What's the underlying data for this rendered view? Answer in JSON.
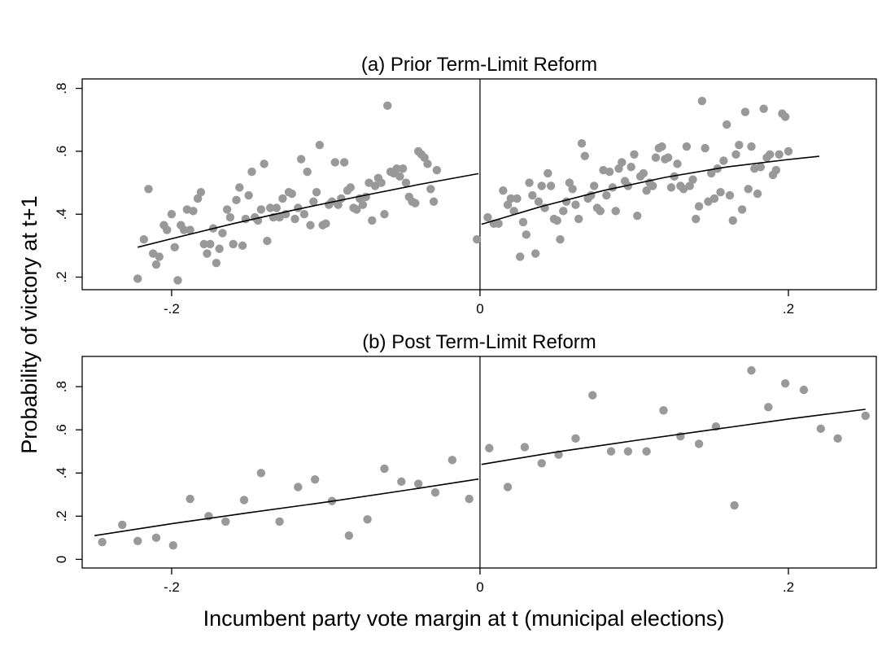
{
  "chart_data": {
    "type": "scatter",
    "ylabel": "Probability of victory at t+1",
    "xlabel": "Incumbent party vote margin at t (municipal elections)",
    "colors": {
      "points": "#999999",
      "fit": "#000000"
    },
    "legend": "none",
    "grid": false,
    "panels": [
      {
        "title": "(a) Prior Term-Limit Reform",
        "xlim": [
          -0.258,
          0.257
        ],
        "ylim": [
          0.16,
          0.83
        ],
        "xticks": [
          -0.2,
          0,
          0.2
        ],
        "xtick_labels": [
          "-.2",
          "0",
          ".2"
        ],
        "yticks": [
          0.2,
          0.4,
          0.6,
          0.8
        ],
        "ytick_labels": [
          ".2",
          ".4",
          ".6",
          ".8"
        ],
        "cutoff": 0,
        "fit_left": [
          [
            -0.222,
            0.295
          ],
          [
            -0.2,
            0.322
          ],
          [
            -0.16,
            0.37
          ],
          [
            -0.12,
            0.414
          ],
          [
            -0.08,
            0.455
          ],
          [
            -0.04,
            0.494
          ],
          [
            -0.001,
            0.529
          ]
        ],
        "fit_right": [
          [
            0.001,
            0.368
          ],
          [
            0.04,
            0.425
          ],
          [
            0.08,
            0.475
          ],
          [
            0.12,
            0.517
          ],
          [
            0.16,
            0.55
          ],
          [
            0.2,
            0.574
          ],
          [
            0.22,
            0.584
          ]
        ],
        "points": [
          [
            -0.222,
            0.195
          ],
          [
            -0.218,
            0.32
          ],
          [
            -0.215,
            0.48
          ],
          [
            -0.212,
            0.275
          ],
          [
            -0.21,
            0.24
          ],
          [
            -0.208,
            0.265
          ],
          [
            -0.205,
            0.365
          ],
          [
            -0.203,
            0.35
          ],
          [
            -0.2,
            0.4
          ],
          [
            -0.198,
            0.295
          ],
          [
            -0.196,
            0.19
          ],
          [
            -0.194,
            0.365
          ],
          [
            -0.192,
            0.35
          ],
          [
            -0.19,
            0.415
          ],
          [
            -0.188,
            0.35
          ],
          [
            -0.186,
            0.41
          ],
          [
            -0.183,
            0.45
          ],
          [
            -0.181,
            0.47
          ],
          [
            -0.179,
            0.305
          ],
          [
            -0.177,
            0.275
          ],
          [
            -0.175,
            0.305
          ],
          [
            -0.173,
            0.355
          ],
          [
            -0.171,
            0.245
          ],
          [
            -0.169,
            0.29
          ],
          [
            -0.167,
            0.34
          ],
          [
            -0.164,
            0.415
          ],
          [
            -0.162,
            0.39
          ],
          [
            -0.16,
            0.305
          ],
          [
            -0.158,
            0.445
          ],
          [
            -0.156,
            0.485
          ],
          [
            -0.154,
            0.3
          ],
          [
            -0.152,
            0.385
          ],
          [
            -0.15,
            0.46
          ],
          [
            -0.148,
            0.535
          ],
          [
            -0.146,
            0.39
          ],
          [
            -0.144,
            0.38
          ],
          [
            -0.142,
            0.415
          ],
          [
            -0.14,
            0.56
          ],
          [
            -0.138,
            0.315
          ],
          [
            -0.136,
            0.42
          ],
          [
            -0.134,
            0.39
          ],
          [
            -0.132,
            0.42
          ],
          [
            -0.13,
            0.39
          ],
          [
            -0.128,
            0.45
          ],
          [
            -0.126,
            0.4
          ],
          [
            -0.124,
            0.47
          ],
          [
            -0.122,
            0.465
          ],
          [
            -0.12,
            0.385
          ],
          [
            -0.118,
            0.42
          ],
          [
            -0.116,
            0.575
          ],
          [
            -0.114,
            0.4
          ],
          [
            -0.112,
            0.535
          ],
          [
            -0.11,
            0.365
          ],
          [
            -0.108,
            0.44
          ],
          [
            -0.106,
            0.47
          ],
          [
            -0.104,
            0.62
          ],
          [
            -0.102,
            0.365
          ],
          [
            -0.1,
            0.37
          ],
          [
            -0.098,
            0.43
          ],
          [
            -0.096,
            0.44
          ],
          [
            -0.094,
            0.565
          ],
          [
            -0.092,
            0.43
          ],
          [
            -0.09,
            0.45
          ],
          [
            -0.088,
            0.565
          ],
          [
            -0.086,
            0.475
          ],
          [
            -0.084,
            0.485
          ],
          [
            -0.082,
            0.42
          ],
          [
            -0.08,
            0.415
          ],
          [
            -0.078,
            0.45
          ],
          [
            -0.076,
            0.43
          ],
          [
            -0.074,
            0.455
          ],
          [
            -0.072,
            0.5
          ],
          [
            -0.07,
            0.38
          ],
          [
            -0.068,
            0.49
          ],
          [
            -0.066,
            0.515
          ],
          [
            -0.064,
            0.5
          ],
          [
            -0.062,
            0.4
          ],
          [
            -0.06,
            0.745
          ],
          [
            -0.058,
            0.535
          ],
          [
            -0.056,
            0.53
          ],
          [
            -0.054,
            0.545
          ],
          [
            -0.052,
            0.52
          ],
          [
            -0.05,
            0.545
          ],
          [
            -0.048,
            0.5
          ],
          [
            -0.046,
            0.455
          ],
          [
            -0.044,
            0.44
          ],
          [
            -0.042,
            0.435
          ],
          [
            -0.04,
            0.6
          ],
          [
            -0.038,
            0.59
          ],
          [
            -0.036,
            0.58
          ],
          [
            -0.034,
            0.56
          ],
          [
            -0.032,
            0.48
          ],
          [
            -0.03,
            0.44
          ],
          [
            -0.028,
            0.54
          ],
          [
            -0.002,
            0.32
          ],
          [
            0.005,
            0.39
          ],
          [
            0.009,
            0.37
          ],
          [
            0.012,
            0.37
          ],
          [
            0.015,
            0.475
          ],
          [
            0.018,
            0.43
          ],
          [
            0.02,
            0.45
          ],
          [
            0.022,
            0.41
          ],
          [
            0.024,
            0.45
          ],
          [
            0.026,
            0.265
          ],
          [
            0.028,
            0.375
          ],
          [
            0.03,
            0.335
          ],
          [
            0.032,
            0.5
          ],
          [
            0.034,
            0.46
          ],
          [
            0.036,
            0.275
          ],
          [
            0.038,
            0.44
          ],
          [
            0.04,
            0.49
          ],
          [
            0.042,
            0.42
          ],
          [
            0.044,
            0.53
          ],
          [
            0.046,
            0.49
          ],
          [
            0.048,
            0.385
          ],
          [
            0.05,
            0.38
          ],
          [
            0.052,
            0.32
          ],
          [
            0.054,
            0.41
          ],
          [
            0.056,
            0.44
          ],
          [
            0.058,
            0.5
          ],
          [
            0.06,
            0.48
          ],
          [
            0.062,
            0.43
          ],
          [
            0.064,
            0.385
          ],
          [
            0.066,
            0.625
          ],
          [
            0.068,
            0.585
          ],
          [
            0.07,
            0.45
          ],
          [
            0.072,
            0.46
          ],
          [
            0.074,
            0.49
          ],
          [
            0.076,
            0.42
          ],
          [
            0.078,
            0.41
          ],
          [
            0.08,
            0.54
          ],
          [
            0.082,
            0.46
          ],
          [
            0.084,
            0.535
          ],
          [
            0.086,
            0.485
          ],
          [
            0.088,
            0.41
          ],
          [
            0.09,
            0.545
          ],
          [
            0.092,
            0.565
          ],
          [
            0.094,
            0.505
          ],
          [
            0.096,
            0.49
          ],
          [
            0.098,
            0.55
          ],
          [
            0.1,
            0.59
          ],
          [
            0.102,
            0.395
          ],
          [
            0.104,
            0.52
          ],
          [
            0.106,
            0.53
          ],
          [
            0.108,
            0.475
          ],
          [
            0.11,
            0.5
          ],
          [
            0.112,
            0.49
          ],
          [
            0.114,
            0.58
          ],
          [
            0.116,
            0.61
          ],
          [
            0.118,
            0.615
          ],
          [
            0.12,
            0.575
          ],
          [
            0.122,
            0.58
          ],
          [
            0.124,
            0.485
          ],
          [
            0.126,
            0.52
          ],
          [
            0.128,
            0.56
          ],
          [
            0.13,
            0.49
          ],
          [
            0.132,
            0.48
          ],
          [
            0.134,
            0.615
          ],
          [
            0.136,
            0.49
          ],
          [
            0.138,
            0.51
          ],
          [
            0.14,
            0.385
          ],
          [
            0.142,
            0.425
          ],
          [
            0.144,
            0.76
          ],
          [
            0.146,
            0.61
          ],
          [
            0.148,
            0.44
          ],
          [
            0.15,
            0.53
          ],
          [
            0.152,
            0.45
          ],
          [
            0.154,
            0.545
          ],
          [
            0.156,
            0.47
          ],
          [
            0.158,
            0.57
          ],
          [
            0.16,
            0.685
          ],
          [
            0.162,
            0.46
          ],
          [
            0.164,
            0.38
          ],
          [
            0.166,
            0.59
          ],
          [
            0.168,
            0.62
          ],
          [
            0.17,
            0.415
          ],
          [
            0.172,
            0.725
          ],
          [
            0.174,
            0.48
          ],
          [
            0.176,
            0.615
          ],
          [
            0.178,
            0.545
          ],
          [
            0.18,
            0.465
          ],
          [
            0.182,
            0.55
          ],
          [
            0.184,
            0.735
          ],
          [
            0.186,
            0.58
          ],
          [
            0.188,
            0.59
          ],
          [
            0.19,
            0.525
          ],
          [
            0.192,
            0.54
          ],
          [
            0.194,
            0.59
          ],
          [
            0.196,
            0.72
          ],
          [
            0.198,
            0.71
          ],
          [
            0.2,
            0.6
          ]
        ]
      },
      {
        "title": "(b) Post Term-Limit Reform",
        "xlim": [
          -0.258,
          0.257
        ],
        "ylim": [
          -0.04,
          0.94
        ],
        "xticks": [
          -0.2,
          0,
          0.2
        ],
        "xtick_labels": [
          "-.2",
          "0",
          ".2"
        ],
        "yticks": [
          0,
          0.2,
          0.4,
          0.6,
          0.8
        ],
        "ytick_labels": [
          "0",
          ".2",
          ".4",
          ".6",
          ".8"
        ],
        "cutoff": 0,
        "fit_left": [
          [
            -0.25,
            0.11
          ],
          [
            -0.2,
            0.165
          ],
          [
            -0.15,
            0.216
          ],
          [
            -0.1,
            0.265
          ],
          [
            -0.05,
            0.318
          ],
          [
            -0.001,
            0.372
          ]
        ],
        "fit_right": [
          [
            0.001,
            0.44
          ],
          [
            0.05,
            0.498
          ],
          [
            0.1,
            0.55
          ],
          [
            0.15,
            0.6
          ],
          [
            0.2,
            0.65
          ],
          [
            0.25,
            0.695
          ]
        ],
        "points": [
          [
            -0.245,
            0.08
          ],
          [
            -0.232,
            0.16
          ],
          [
            -0.222,
            0.085
          ],
          [
            -0.21,
            0.1
          ],
          [
            -0.199,
            0.065
          ],
          [
            -0.188,
            0.28
          ],
          [
            -0.176,
            0.2
          ],
          [
            -0.165,
            0.175
          ],
          [
            -0.153,
            0.275
          ],
          [
            -0.142,
            0.4
          ],
          [
            -0.13,
            0.175
          ],
          [
            -0.118,
            0.335
          ],
          [
            -0.107,
            0.37
          ],
          [
            -0.096,
            0.27
          ],
          [
            -0.085,
            0.11
          ],
          [
            -0.073,
            0.185
          ],
          [
            -0.062,
            0.42
          ],
          [
            -0.051,
            0.36
          ],
          [
            -0.04,
            0.35
          ],
          [
            -0.029,
            0.31
          ],
          [
            -0.018,
            0.46
          ],
          [
            -0.007,
            0.28
          ],
          [
            0.006,
            0.515
          ],
          [
            0.018,
            0.335
          ],
          [
            0.029,
            0.52
          ],
          [
            0.04,
            0.445
          ],
          [
            0.051,
            0.485
          ],
          [
            0.062,
            0.56
          ],
          [
            0.073,
            0.76
          ],
          [
            0.085,
            0.5
          ],
          [
            0.096,
            0.5
          ],
          [
            0.108,
            0.5
          ],
          [
            0.119,
            0.69
          ],
          [
            0.13,
            0.57
          ],
          [
            0.142,
            0.535
          ],
          [
            0.153,
            0.615
          ],
          [
            0.165,
            0.25
          ],
          [
            0.176,
            0.875
          ],
          [
            0.187,
            0.705
          ],
          [
            0.198,
            0.815
          ],
          [
            0.21,
            0.785
          ],
          [
            0.221,
            0.605
          ],
          [
            0.232,
            0.56
          ],
          [
            0.25,
            0.665
          ]
        ]
      }
    ]
  }
}
